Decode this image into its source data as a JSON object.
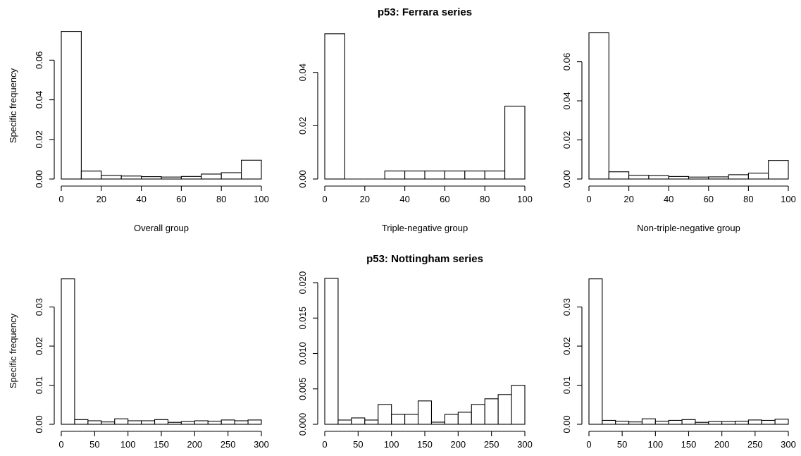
{
  "section_titles": [
    "p53: Ferrara series",
    "p53: Nottingham series"
  ],
  "chart_data": [
    {
      "type": "bar",
      "title": "",
      "xlabel": "Overall group",
      "ylabel": "Specific frequency",
      "xlim": [
        0,
        100
      ],
      "ylim": [
        0,
        0.074
      ],
      "x_ticks": [
        "0",
        "20",
        "40",
        "60",
        "80",
        "100"
      ],
      "y_ticks": [
        "0.00",
        "0.02",
        "0.04",
        "0.06"
      ],
      "bin_edges": [
        0,
        10,
        20,
        30,
        40,
        50,
        60,
        70,
        80,
        90,
        100
      ],
      "values": [
        0.0745,
        0.004,
        0.0018,
        0.0015,
        0.0012,
        0.001,
        0.0013,
        0.0025,
        0.0032,
        0.0095
      ]
    },
    {
      "type": "bar",
      "title": "",
      "xlabel": "Triple-negative group",
      "ylabel": "",
      "xlim": [
        0,
        100
      ],
      "ylim": [
        0,
        0.055
      ],
      "x_ticks": [
        "0",
        "20",
        "40",
        "60",
        "80",
        "100"
      ],
      "y_ticks": [
        "0.00",
        "0.02",
        "0.04"
      ],
      "bin_edges": [
        0,
        10,
        20,
        30,
        40,
        50,
        60,
        70,
        80,
        90,
        100
      ],
      "values": [
        0.0545,
        0,
        0,
        0.003,
        0.003,
        0.003,
        0.003,
        0.003,
        0.003,
        0.0273
      ]
    },
    {
      "type": "bar",
      "title": "",
      "xlabel": "Non-triple-negative group",
      "ylabel": "",
      "xlim": [
        0,
        100
      ],
      "ylim": [
        0,
        0.075
      ],
      "x_ticks": [
        "0",
        "20",
        "40",
        "60",
        "80",
        "100"
      ],
      "y_ticks": [
        "0.00",
        "0.02",
        "0.04",
        "0.06"
      ],
      "bin_edges": [
        0,
        10,
        20,
        30,
        40,
        50,
        60,
        70,
        80,
        90,
        100
      ],
      "values": [
        0.0748,
        0.0037,
        0.0019,
        0.0017,
        0.0013,
        0.001,
        0.0011,
        0.0022,
        0.003,
        0.0095
      ]
    },
    {
      "type": "bar",
      "title": "",
      "xlabel": "",
      "ylabel": "Specific frequency",
      "xlim": [
        0,
        300
      ],
      "ylim": [
        0,
        0.0375
      ],
      "x_ticks": [
        "0",
        "50",
        "100",
        "150",
        "200",
        "250",
        "300"
      ],
      "y_ticks": [
        "0.00",
        "0.01",
        "0.02",
        "0.03"
      ],
      "bin_edges": [
        0,
        20,
        40,
        60,
        80,
        100,
        120,
        140,
        160,
        180,
        200,
        220,
        240,
        260,
        280,
        300
      ],
      "values": [
        0.0372,
        0.0012,
        0.0009,
        0.0006,
        0.0014,
        0.0009,
        0.0009,
        0.0012,
        0.0005,
        0.0007,
        0.0009,
        0.0008,
        0.0011,
        0.0009,
        0.0011
      ]
    },
    {
      "type": "bar",
      "title": "",
      "xlabel": "",
      "ylabel": "",
      "xlim": [
        0,
        300
      ],
      "ylim": [
        0,
        0.0207
      ],
      "x_ticks": [
        "0",
        "50",
        "100",
        "150",
        "200",
        "250",
        "300"
      ],
      "y_ticks": [
        "0.000",
        "0.005",
        "0.010",
        "0.015",
        "0.020"
      ],
      "bin_edges": [
        0,
        20,
        40,
        60,
        80,
        100,
        120,
        140,
        160,
        180,
        200,
        220,
        240,
        260,
        280,
        300
      ],
      "values": [
        0.0206,
        0.0006,
        0.0009,
        0.0006,
        0.0028,
        0.0014,
        0.0014,
        0.0033,
        0.0003,
        0.0014,
        0.0017,
        0.0028,
        0.0036,
        0.0042,
        0.0055
      ]
    },
    {
      "type": "bar",
      "title": "",
      "xlabel": "",
      "ylabel": "",
      "xlim": [
        0,
        300
      ],
      "ylim": [
        0,
        0.0375
      ],
      "x_ticks": [
        "0",
        "50",
        "100",
        "150",
        "200",
        "250",
        "300"
      ],
      "y_ticks": [
        "0.00",
        "0.01",
        "0.02",
        "0.03"
      ],
      "bin_edges": [
        0,
        20,
        40,
        60,
        80,
        100,
        120,
        140,
        160,
        180,
        200,
        220,
        240,
        260,
        280,
        300
      ],
      "values": [
        0.0372,
        0.001,
        0.0008,
        0.0006,
        0.0014,
        0.0008,
        0.001,
        0.0012,
        0.0005,
        0.0007,
        0.0007,
        0.0008,
        0.0011,
        0.001,
        0.0013
      ]
    }
  ]
}
